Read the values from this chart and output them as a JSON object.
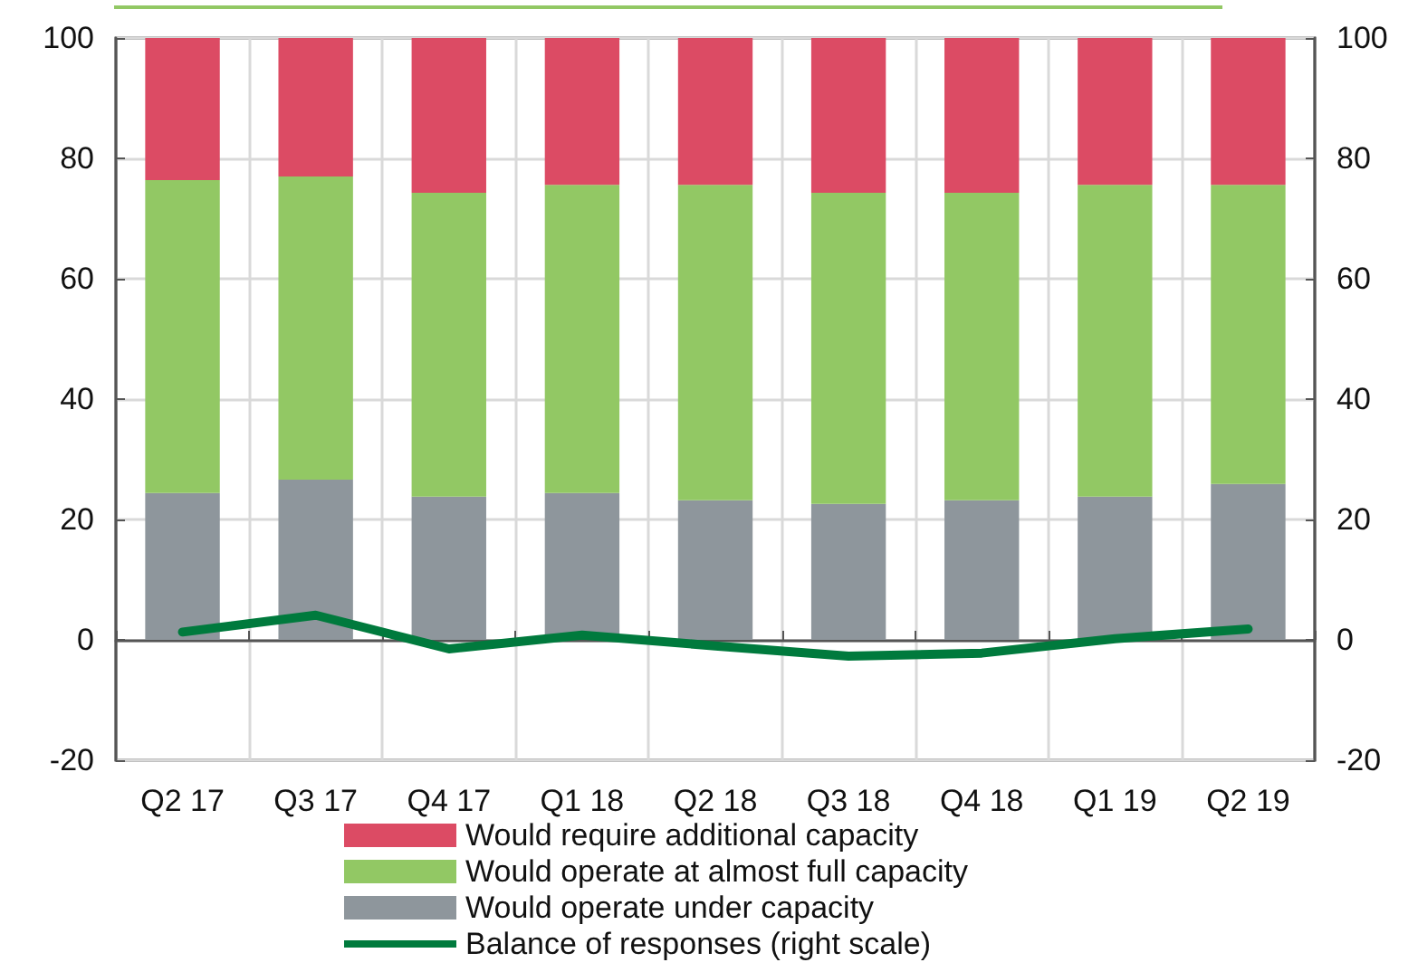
{
  "chart_data": {
    "type": "bar",
    "stacked": true,
    "categories": [
      "Q2 17",
      "Q3 17",
      "Q4 17",
      "Q1 18",
      "Q2 18",
      "Q3 18",
      "Q4 18",
      "Q1 19",
      "Q2 19"
    ],
    "series": [
      {
        "name": "Would operate under capacity",
        "color": "#8e969c",
        "values": [
          24.4,
          26.6,
          23.8,
          24.4,
          23.2,
          22.6,
          23.2,
          23.8,
          25.9
        ]
      },
      {
        "name": "Would operate at almost full capacity",
        "color": "#92c864",
        "values": [
          52.0,
          50.4,
          50.5,
          51.2,
          52.4,
          51.7,
          51.1,
          51.8,
          49.7
        ]
      },
      {
        "name": "Would require additional capacity",
        "color": "#dc4b64",
        "values": [
          23.6,
          23.0,
          25.7,
          24.4,
          24.4,
          25.7,
          25.7,
          24.4,
          24.4
        ]
      },
      {
        "name": "Balance of responses (right scale)",
        "type": "line",
        "axis": "y2",
        "color": "#007a3d",
        "values": [
          1.3,
          4.1,
          -1.5,
          0.8,
          -1.0,
          -2.7,
          -2.2,
          0.2,
          1.8
        ]
      }
    ],
    "ylim": [
      -20,
      100
    ],
    "yticks": [
      -20,
      0,
      20,
      40,
      60,
      80,
      100
    ],
    "y2lim": [
      -20,
      100
    ],
    "y2ticks": [
      -20,
      0,
      20,
      40,
      60,
      80,
      100
    ],
    "grid": true,
    "legend": "bottom",
    "marker": "none"
  }
}
